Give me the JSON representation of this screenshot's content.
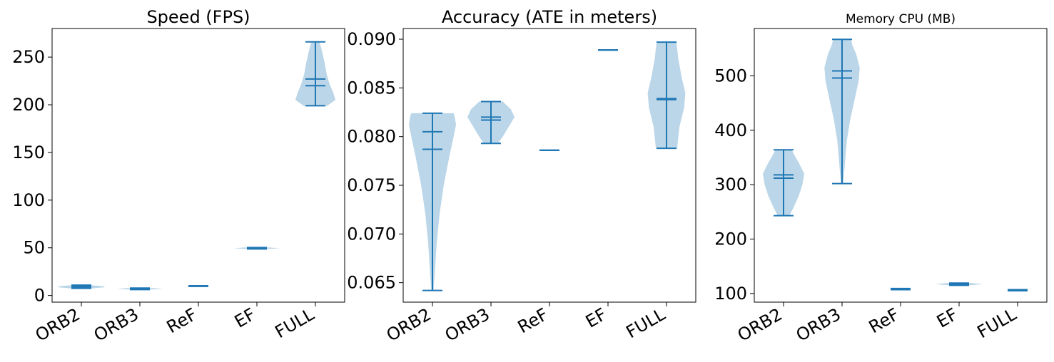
{
  "colors": {
    "violin": "#1f77b4",
    "frame": "#000000",
    "background": "#ffffff"
  },
  "chart_data": [
    {
      "type": "violin",
      "title": "Speed (FPS)",
      "xlabel": "",
      "ylabel": "",
      "categories": [
        "ORB2",
        "ORB3",
        "ReF",
        "EF",
        "FULL"
      ],
      "ylim": [
        -7,
        280
      ],
      "yticks": [
        0,
        50,
        100,
        150,
        200,
        250
      ],
      "ytick_labels": [
        "0",
        "50",
        "100",
        "150",
        "200",
        "250"
      ],
      "grid": false,
      "violins": [
        {
          "min": 7.5,
          "max": 10.8,
          "mean": 9.4,
          "median": 8.8,
          "density": [
            [
              7.5,
              0.5
            ],
            [
              8.5,
              0.95
            ],
            [
              9.5,
              1
            ],
            [
              10.2,
              0.7
            ],
            [
              10.8,
              0.4
            ]
          ]
        },
        {
          "min": 6.2,
          "max": 7.8,
          "mean": 7.2,
          "median": 7.0,
          "density": [
            [
              6.2,
              0.5
            ],
            [
              7.0,
              1
            ],
            [
              7.8,
              0.5
            ]
          ]
        },
        {
          "min": 9.5,
          "max": 10.2,
          "mean": 9.9,
          "median": 9.8,
          "density": [
            [
              9.5,
              0.2
            ],
            [
              10.2,
              0.2
            ]
          ]
        },
        {
          "min": 48.8,
          "max": 50.3,
          "mean": 49.6,
          "median": 49.5,
          "density": [
            [
              48.8,
              0.5
            ],
            [
              49.5,
              1
            ],
            [
              50.3,
              0.5
            ]
          ]
        },
        {
          "min": 199,
          "max": 266,
          "mean": 227,
          "median": 220,
          "density": [
            [
              199,
              0.5
            ],
            [
              205,
              0.85
            ],
            [
              213,
              0.75
            ],
            [
              222,
              0.6
            ],
            [
              232,
              0.48
            ],
            [
              243,
              0.4
            ],
            [
              254,
              0.3
            ],
            [
              262,
              0.22
            ],
            [
              266,
              0.16
            ]
          ]
        }
      ]
    },
    {
      "type": "violin",
      "title": "Accuracy (ATE in meters)",
      "xlabel": "",
      "ylabel": "",
      "categories": [
        "ORB2",
        "ORB3",
        "ReF",
        "EF",
        "FULL"
      ],
      "ylim": [
        0.063,
        0.0911
      ],
      "yticks": [
        0.065,
        0.07,
        0.075,
        0.08,
        0.085,
        0.09
      ],
      "ytick_labels": [
        "0.065",
        "0.070",
        "0.075",
        "0.080",
        "0.085",
        "0.090"
      ],
      "grid": false,
      "violins": [
        {
          "min": 0.0642,
          "max": 0.0824,
          "mean": 0.0787,
          "median": 0.0805,
          "density": [
            [
              0.0642,
              0.05
            ],
            [
              0.066,
              0.1
            ],
            [
              0.069,
              0.18
            ],
            [
              0.072,
              0.3
            ],
            [
              0.075,
              0.48
            ],
            [
              0.078,
              0.72
            ],
            [
              0.08,
              0.9
            ],
            [
              0.0812,
              1
            ],
            [
              0.082,
              0.95
            ],
            [
              0.0824,
              0.9
            ]
          ]
        },
        {
          "min": 0.0793,
          "max": 0.0836,
          "mean": 0.082,
          "median": 0.0817,
          "density": [
            [
              0.0793,
              0.3
            ],
            [
              0.08,
              0.5
            ],
            [
              0.081,
              0.75
            ],
            [
              0.082,
              1
            ],
            [
              0.0828,
              0.85
            ],
            [
              0.0836,
              0.5
            ]
          ]
        },
        {
          "min": 0.0786,
          "max": 0.0786,
          "mean": 0.0786,
          "median": 0.0786,
          "density": []
        },
        {
          "min": 0.0889,
          "max": 0.0889,
          "mean": 0.0889,
          "median": 0.0889,
          "density": []
        },
        {
          "min": 0.0788,
          "max": 0.0897,
          "mean": 0.0838,
          "median": 0.0839,
          "density": [
            [
              0.0788,
              0.45
            ],
            [
              0.081,
              0.55
            ],
            [
              0.083,
              0.75
            ],
            [
              0.0845,
              0.8
            ],
            [
              0.086,
              0.65
            ],
            [
              0.088,
              0.5
            ],
            [
              0.0897,
              0.42
            ]
          ]
        }
      ]
    },
    {
      "type": "violin",
      "title": "Memory CPU (MB)",
      "xlabel": "",
      "ylabel": "",
      "categories": [
        "ORB2",
        "ORB3",
        "ReF",
        "EF",
        "FULL"
      ],
      "ylim": [
        84,
        587
      ],
      "yticks": [
        100,
        200,
        300,
        400,
        500
      ],
      "ytick_labels": [
        "100",
        "200",
        "300",
        "400",
        "500"
      ],
      "grid": false,
      "violins": [
        {
          "min": 243,
          "max": 364,
          "mean": 318,
          "median": 312,
          "density": [
            [
              243,
              0.25
            ],
            [
              260,
              0.45
            ],
            [
              280,
              0.65
            ],
            [
              300,
              0.8
            ],
            [
              320,
              0.88
            ],
            [
              340,
              0.65
            ],
            [
              355,
              0.45
            ],
            [
              364,
              0.35
            ]
          ]
        },
        {
          "min": 302,
          "max": 567,
          "mean": 509,
          "median": 496,
          "density": [
            [
              302,
              0.05
            ],
            [
              340,
              0.12
            ],
            [
              380,
              0.2
            ],
            [
              420,
              0.35
            ],
            [
              460,
              0.55
            ],
            [
              490,
              0.7
            ],
            [
              515,
              0.75
            ],
            [
              540,
              0.6
            ],
            [
              555,
              0.45
            ],
            [
              567,
              0.38
            ]
          ]
        },
        {
          "min": 107,
          "max": 109,
          "mean": 108,
          "median": 108,
          "density": [
            [
              107,
              0.15
            ],
            [
              109,
              0.15
            ]
          ]
        },
        {
          "min": 115,
          "max": 119,
          "mean": 117,
          "median": 117,
          "density": [
            [
              115,
              0.5
            ],
            [
              117,
              1
            ],
            [
              119,
              0.5
            ]
          ]
        },
        {
          "min": 105,
          "max": 107,
          "mean": 106,
          "median": 106,
          "density": [
            [
              105,
              0.15
            ],
            [
              107,
              0.15
            ]
          ]
        }
      ]
    }
  ]
}
